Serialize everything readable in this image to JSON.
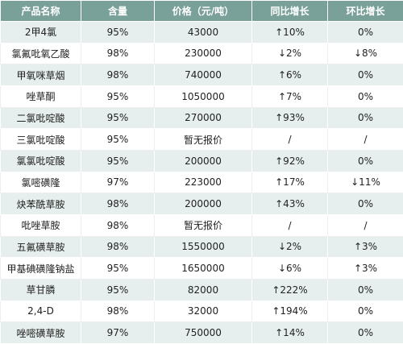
{
  "table": {
    "headers": [
      "产品名称",
      "含量",
      "价格（元/吨）",
      "同比增长",
      "环比增长"
    ],
    "rows": [
      [
        "2甲4氯",
        "95%",
        "43000",
        "↑10%",
        "0%"
      ],
      [
        "氯氟吡氧乙酸",
        "98%",
        "230000",
        "↓2%",
        "↓8%"
      ],
      [
        "甲氧咪草烟",
        "98%",
        "740000",
        "↑6%",
        "0%"
      ],
      [
        "唑草酮",
        "95%",
        "1050000",
        "↑7%",
        "0%"
      ],
      [
        "二氯吡啶酸",
        "95%",
        "270000",
        "↑93%",
        "0%"
      ],
      [
        "三氯吡啶酸",
        "95%",
        "暂无报价",
        "/",
        "/"
      ],
      [
        "氯氯吡啶酸",
        "95%",
        "200000",
        "↑92%",
        "0%"
      ],
      [
        "氯嘧磺隆",
        "97%",
        "223000",
        "↑17%",
        "↓11%"
      ],
      [
        "炔苯酰草胺",
        "98%",
        "200000",
        "↑43%",
        "0%"
      ],
      [
        "吡唑草胺",
        "98%",
        "暂无报价",
        "/",
        "/"
      ],
      [
        "五氟磺草胺",
        "98%",
        "1550000",
        "↓2%",
        "↑3%"
      ],
      [
        "甲基碘磺隆钠盐",
        "95%",
        "1650000",
        "↓6%",
        "↑3%"
      ],
      [
        "草甘膦",
        "95%",
        "82000",
        "↑222%",
        "0%"
      ],
      [
        "2,4-D",
        "98%",
        "32000",
        "↑194%",
        "0%"
      ],
      [
        "唑嘧磺草胺",
        "97%",
        "750000",
        "↑14%",
        "0%"
      ]
    ]
  },
  "colors": {
    "header_bg": "#7aa09a",
    "header_text": "#ffffff",
    "stripe": "#e6efed",
    "text": "#222222"
  }
}
